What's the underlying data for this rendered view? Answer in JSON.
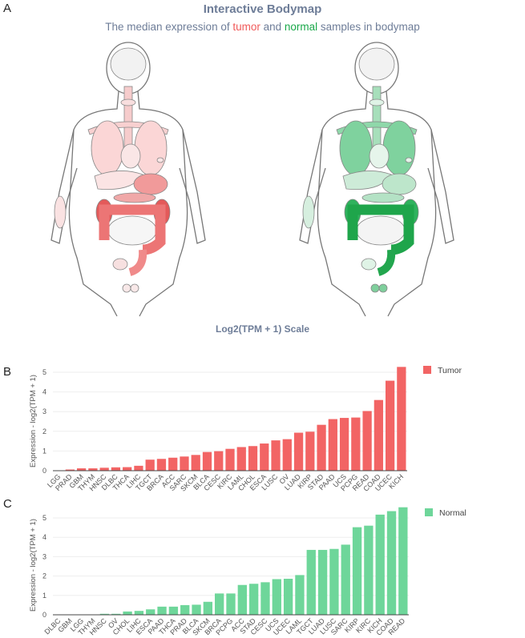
{
  "panels": {
    "a": "A",
    "b": "B",
    "c": "C"
  },
  "header": {
    "title": "Interactive Bodymap",
    "subtitle_pre": "The median expression of ",
    "subtitle_tumor": "tumor",
    "subtitle_mid": " and ",
    "subtitle_normal": "normal",
    "subtitle_post": " samples in bodymap"
  },
  "colors": {
    "title": "#6e7d98",
    "tumor": "#f26464",
    "normal": "#6ed69a",
    "tumor_text": "#f05a5a",
    "normal_text": "#1aa84a"
  },
  "bodymap": {
    "scale_label": "Log2(TPM + 1) Scale",
    "tumor_organs": {
      "brain": "#f2f2f2",
      "thyroid": "#f8dede",
      "esophagus": "#f6cccc",
      "lung": "#fbd6d6",
      "breast": "#f8d0d0",
      "heart": "#fae6e6",
      "liver": "#fbe4e4",
      "stomach": "#f19a9a",
      "pancreas": "#f0a8a8",
      "kidney": "#e35a5a",
      "colon": "#ec7575",
      "small_intestine": "#f6f6f6",
      "rectum": "#f08a8a",
      "bladder": "#f7e0e0",
      "prostate": "#f8e8e8",
      "skin": "#fae2e2"
    },
    "normal_organs": {
      "brain": "#f2f2f2",
      "thyroid": "#dff3e6",
      "esophagus": "#a7dfbb",
      "lung": "#7fd29e",
      "breast": "#8fd8aa",
      "heart": "#e6f5eb",
      "liver": "#cdebd8",
      "stomach": "#bde6cb",
      "pancreas": "#b4e2c5",
      "kidney": "#2fb25d",
      "colon": "#1fa54b",
      "small_intestine": "#f4f4f4",
      "rectum": "#22a64e",
      "bladder": "#dff3e6",
      "prostate": "#7fcf9c",
      "skin": "#d6efdf"
    }
  },
  "chart_data": [
    {
      "type": "bar",
      "title": "",
      "xlabel": "",
      "ylabel": "Expression - log2(TPM + 1)",
      "ylim": [
        0,
        5.4
      ],
      "yticks": [
        0,
        1,
        2,
        3,
        4,
        5
      ],
      "grid": true,
      "legend_position": "top-right",
      "color": "#f26464",
      "categories": [
        "LGG",
        "PRAD",
        "GBM",
        "THYM",
        "HNSC",
        "DLBC",
        "THCA",
        "LIHC",
        "TGCT",
        "BRCA",
        "ACC",
        "SARC",
        "SKCM",
        "BLCA",
        "CESC",
        "KIRC",
        "LAML",
        "CHOL",
        "ESCA",
        "LUSC",
        "OV",
        "LUAD",
        "KIRP",
        "STAD",
        "PAAD",
        "UCS",
        "PCPG",
        "READ",
        "COAD",
        "UCEC",
        "KICH"
      ],
      "series": [
        {
          "name": "Tumor",
          "values": [
            0.01,
            0.06,
            0.12,
            0.12,
            0.15,
            0.17,
            0.18,
            0.25,
            0.56,
            0.6,
            0.66,
            0.72,
            0.8,
            0.95,
            0.99,
            1.11,
            1.2,
            1.25,
            1.38,
            1.54,
            1.6,
            1.93,
            1.98,
            2.33,
            2.62,
            2.68,
            2.7,
            3.03,
            3.59,
            4.57,
            5.27
          ]
        }
      ]
    },
    {
      "type": "bar",
      "title": "",
      "xlabel": "",
      "ylabel": "Expression - log2(TPM + 1)",
      "ylim": [
        0,
        5.6
      ],
      "yticks": [
        0,
        1,
        2,
        3,
        4,
        5
      ],
      "grid": true,
      "legend_position": "top-right",
      "color": "#6ed69a",
      "categories": [
        "DLBC",
        "GBM",
        "LGG",
        "THYM",
        "HNSC",
        "OV",
        "CHOL",
        "LIHC",
        "ESCA",
        "PAAD",
        "THCA",
        "PRAD",
        "BLCA",
        "SKCM",
        "BRCA",
        "PCPG",
        "ACC",
        "STAD",
        "CESC",
        "UCS",
        "UCEC",
        "LAML",
        "TGCT",
        "LUAD",
        "LUSC",
        "SARC",
        "KIRP",
        "KIRC",
        "KICH",
        "COAD",
        "READ"
      ],
      "series": [
        {
          "name": "Normal",
          "values": [
            0.01,
            0.01,
            0.01,
            0.01,
            0.05,
            0.05,
            0.17,
            0.2,
            0.28,
            0.42,
            0.42,
            0.5,
            0.52,
            0.67,
            1.1,
            1.1,
            1.54,
            1.6,
            1.68,
            1.84,
            1.86,
            2.05,
            3.35,
            3.35,
            3.4,
            3.62,
            4.52,
            4.6,
            5.17,
            5.35,
            5.55
          ]
        }
      ]
    }
  ]
}
